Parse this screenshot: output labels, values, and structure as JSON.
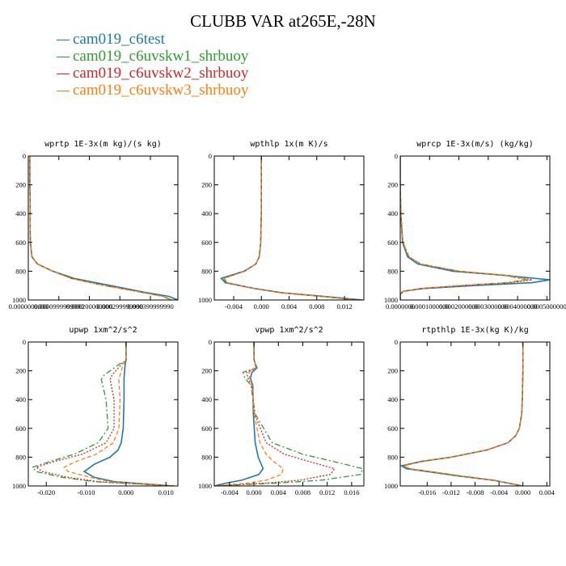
{
  "title": "CLUBB VAR at265E,-28N",
  "legend": [
    {
      "label": "cam019_c6test",
      "color": "#1f77b4",
      "style": "solid"
    },
    {
      "label": "cam019_c6uvskw1_shrbuoy",
      "color": "#2ca02c",
      "style": "dashdot"
    },
    {
      "label": "cam019_c6uvskw2_shrbuoy",
      "color": "#d62728",
      "style": "dotted"
    },
    {
      "label": "cam019_c6uvskw3_shrbuoy",
      "color": "#ff7f0e",
      "style": "dashed"
    }
  ],
  "chart_data": [
    {
      "type": "line",
      "title": "wprtp  1E-3x(m kg)/(s kg)",
      "xlim": [
        0.0,
        0.00049
      ],
      "ylim": [
        1000,
        0
      ],
      "xticks": [
        0.0,
        0.0001,
        0.0002,
        0.0003,
        0.0004
      ],
      "xtick_labels": [
        "0.0000000000",
        "0.0000999999990",
        "0.000200000000",
        "0.000299999990",
        "0.000399999990"
      ],
      "yticks": [
        0,
        200,
        400,
        600,
        800,
        1000
      ],
      "series": [
        {
          "y": [
            0,
            100,
            200,
            300,
            400,
            500,
            600,
            700,
            750,
            800,
            850,
            900,
            950,
            975,
            1000
          ],
          "x": [
            5e-06,
            5e-06,
            5e-06,
            6e-06,
            6e-06,
            6e-06,
            7e-06,
            1.2e-05,
            3e-05,
            8e-05,
            0.00015,
            0.00027,
            0.00039,
            0.00046,
            0.00049
          ]
        },
        {
          "y": [
            0,
            100,
            200,
            300,
            400,
            500,
            600,
            700,
            750,
            800,
            850,
            900,
            950,
            975,
            1000
          ],
          "x": [
            5e-06,
            5e-06,
            5e-06,
            6e-06,
            6e-06,
            6e-06,
            7e-06,
            1.2e-05,
            3e-05,
            8e-05,
            0.00014,
            0.00025,
            0.00038,
            0.00044,
            0.00047
          ]
        },
        {
          "y": [
            0,
            100,
            200,
            300,
            400,
            500,
            600,
            700,
            750,
            800,
            850,
            900,
            950,
            975,
            1000
          ],
          "x": [
            5e-06,
            5e-06,
            5e-06,
            6e-06,
            6e-06,
            6e-06,
            7e-06,
            1.2e-05,
            3e-05,
            8e-05,
            0.00014,
            0.00025,
            0.00038,
            0.00044,
            0.00047
          ]
        },
        {
          "y": [
            0,
            100,
            200,
            300,
            400,
            500,
            600,
            700,
            750,
            800,
            850,
            900,
            950,
            975,
            1000
          ],
          "x": [
            5e-06,
            5e-06,
            5e-06,
            6e-06,
            6e-06,
            6e-06,
            7e-06,
            1.2e-05,
            3e-05,
            8e-05,
            0.00014,
            0.00025,
            0.00038,
            0.00044,
            0.00047
          ]
        }
      ]
    },
    {
      "type": "line",
      "title": "wpthlp  1x(m K)/s",
      "xlim": [
        -0.0068,
        0.0148
      ],
      "ylim": [
        1000,
        0
      ],
      "xticks": [
        -0.004,
        0.0,
        0.004,
        0.008,
        0.012
      ],
      "xtick_labels": [
        "-0.004",
        "0.000",
        "0.004",
        "0.008",
        "0.012"
      ],
      "yticks": [
        0,
        200,
        400,
        600,
        800,
        1000
      ],
      "series": [
        {
          "y": [
            0,
            200,
            400,
            600,
            700,
            750,
            800,
            850,
            880,
            920,
            950,
            975,
            1000
          ],
          "x": [
            0.0,
            0.0,
            0.0,
            -0.0001,
            -0.0003,
            -0.0008,
            -0.0025,
            -0.0058,
            -0.0052,
            -0.001,
            0.003,
            0.009,
            0.0146
          ]
        },
        {
          "y": [
            0,
            200,
            400,
            600,
            700,
            750,
            800,
            850,
            880,
            920,
            950,
            975,
            1000
          ],
          "x": [
            0.0,
            0.0,
            0.0,
            -0.0001,
            -0.0003,
            -0.0008,
            -0.0024,
            -0.0055,
            -0.005,
            -0.001,
            0.0028,
            0.0085,
            0.0138
          ]
        },
        {
          "y": [
            0,
            200,
            400,
            600,
            700,
            750,
            800,
            850,
            880,
            920,
            950,
            975,
            1000
          ],
          "x": [
            0.0,
            0.0,
            0.0,
            -0.0001,
            -0.0003,
            -0.0008,
            -0.0024,
            -0.0054,
            -0.0049,
            -0.001,
            0.0028,
            0.0085,
            0.0138
          ]
        },
        {
          "y": [
            0,
            200,
            400,
            600,
            700,
            750,
            800,
            850,
            880,
            920,
            950,
            975,
            1000
          ],
          "x": [
            0.0,
            0.0,
            0.0,
            -0.0001,
            -0.0003,
            -0.0008,
            -0.0024,
            -0.0054,
            -0.0049,
            -0.001,
            0.0028,
            0.0085,
            0.0138
          ]
        }
      ]
    },
    {
      "type": "line",
      "title": "wprcp  1E-3x(m/s) (kg/kg)",
      "xlim": [
        0.0,
        0.00051
      ],
      "ylim": [
        1000,
        0
      ],
      "xticks": [
        0.0,
        0.0001,
        0.0002,
        0.0003,
        0.0004,
        0.0005
      ],
      "xtick_labels": [
        "0.0000000",
        "0.0001000000",
        "0.0002000000",
        "0.0003000000",
        "0.0004000000",
        "0.0005000000"
      ],
      "yticks": [
        0,
        200,
        400,
        600,
        800,
        1000
      ],
      "series": [
        {
          "y": [
            0,
            200,
            400,
            600,
            700,
            750,
            800,
            830,
            860,
            880,
            900,
            920,
            940,
            960,
            1000
          ],
          "x": [
            0.0,
            0.0,
            2e-06,
            8e-06,
            2.5e-05,
            6e-05,
            0.00018,
            0.00036,
            0.00051,
            0.00045,
            0.00025,
            8e-05,
            1e-05,
            0.0,
            0.0
          ]
        },
        {
          "y": [
            0,
            200,
            400,
            600,
            700,
            750,
            800,
            830,
            860,
            880,
            900,
            920,
            940,
            960,
            1000
          ],
          "x": [
            0.0,
            0.0,
            2e-06,
            9e-06,
            3e-05,
            7e-05,
            0.0002,
            0.00036,
            0.00043,
            0.00036,
            0.0002,
            7e-05,
            1e-05,
            0.0,
            0.0
          ]
        },
        {
          "y": [
            0,
            200,
            400,
            600,
            700,
            750,
            800,
            830,
            860,
            880,
            900,
            920,
            940,
            960,
            1000
          ],
          "x": [
            0.0,
            0.0,
            2e-06,
            9e-06,
            3e-05,
            7e-05,
            0.0002,
            0.00037,
            0.00045,
            0.00038,
            0.00021,
            7e-05,
            1e-05,
            0.0,
            0.0
          ]
        },
        {
          "y": [
            0,
            200,
            400,
            600,
            700,
            750,
            800,
            830,
            860,
            880,
            900,
            920,
            940,
            960,
            1000
          ],
          "x": [
            0.0,
            0.0,
            2e-06,
            9e-06,
            3e-05,
            7e-05,
            0.0002,
            0.00037,
            0.00044,
            0.00037,
            0.0002,
            7e-05,
            1e-05,
            0.0,
            0.0
          ]
        }
      ]
    },
    {
      "type": "line",
      "title": "upwp   1xm^2/s^2",
      "xlim": [
        -0.0245,
        0.013
      ],
      "ylim": [
        1000,
        0
      ],
      "xticks": [
        -0.02,
        -0.01,
        0.0,
        0.01
      ],
      "xtick_labels": [
        "-0.020",
        "-0.010",
        "0.000",
        "0.010"
      ],
      "yticks": [
        0,
        200,
        400,
        600,
        800,
        1000
      ],
      "series": [
        {
          "y": [
            0,
            130,
            150,
            250,
            400,
            600,
            700,
            750,
            800,
            850,
            900,
            940,
            970,
            1000
          ],
          "x": [
            0.0,
            0.0,
            -0.0002,
            -0.0005,
            -0.0005,
            -0.0007,
            -0.0012,
            -0.002,
            -0.004,
            -0.008,
            -0.0105,
            -0.008,
            -0.003,
            0.012
          ]
        },
        {
          "y": [
            0,
            130,
            150,
            230,
            260,
            400,
            600,
            700,
            780,
            830,
            870,
            900,
            940,
            970,
            1000
          ],
          "x": [
            0.0,
            0.0,
            -0.0015,
            -0.0055,
            -0.0062,
            -0.005,
            -0.0045,
            -0.007,
            -0.013,
            -0.019,
            -0.0235,
            -0.0225,
            -0.016,
            -0.008,
            0.012
          ]
        },
        {
          "y": [
            0,
            130,
            150,
            230,
            260,
            400,
            600,
            700,
            780,
            830,
            870,
            900,
            940,
            970,
            1000
          ],
          "x": [
            0.0,
            0.0,
            -0.001,
            -0.0035,
            -0.004,
            -0.003,
            -0.003,
            -0.005,
            -0.011,
            -0.018,
            -0.0225,
            -0.021,
            -0.0145,
            -0.007,
            0.012
          ]
        },
        {
          "y": [
            0,
            130,
            150,
            230,
            260,
            400,
            600,
            700,
            780,
            830,
            870,
            900,
            940,
            970,
            1000
          ],
          "x": [
            0.0,
            0.0,
            -0.0006,
            -0.0015,
            -0.0018,
            -0.0015,
            -0.0018,
            -0.0032,
            -0.0075,
            -0.0125,
            -0.0155,
            -0.0145,
            -0.009,
            -0.004,
            0.012
          ]
        }
      ]
    },
    {
      "type": "line",
      "title": "vpwp   1xm^2/s^2",
      "xlim": [
        -0.0065,
        0.018
      ],
      "ylim": [
        1000,
        0
      ],
      "xticks": [
        -0.004,
        0.0,
        0.004,
        0.008,
        0.012,
        0.016
      ],
      "xtick_labels": [
        "-0.004",
        "0.000",
        "0.004",
        "0.008",
        "0.012",
        "0.016"
      ],
      "yticks": [
        0,
        200,
        400,
        600,
        800,
        1000
      ],
      "series": [
        {
          "y": [
            0,
            120,
            150,
            180,
            210,
            250,
            300,
            500,
            700,
            800,
            880,
            920,
            960,
            980,
            1000
          ],
          "x": [
            0.0,
            0.0,
            0.0002,
            0.0005,
            -0.0003,
            -0.0006,
            -0.0002,
            -0.0001,
            0.0002,
            0.0007,
            0.0015,
            0.0008,
            -0.002,
            -0.0045,
            -0.0065
          ]
        },
        {
          "y": [
            0,
            120,
            150,
            180,
            210,
            250,
            300,
            500,
            700,
            780,
            830,
            880,
            920,
            960,
            980,
            1000
          ],
          "x": [
            0.0,
            0.0,
            0.0002,
            0.0004,
            -0.0018,
            -0.0015,
            -0.0005,
            0.0002,
            0.003,
            0.008,
            0.013,
            0.0178,
            0.0175,
            0.011,
            0.004,
            -0.0065
          ]
        },
        {
          "y": [
            0,
            120,
            150,
            180,
            210,
            250,
            300,
            500,
            700,
            780,
            830,
            880,
            920,
            960,
            980,
            1000
          ],
          "x": [
            0.0,
            0.0,
            0.0002,
            0.0003,
            -0.0012,
            -0.001,
            -0.0004,
            0.0001,
            0.002,
            0.005,
            0.009,
            0.0132,
            0.0125,
            0.0075,
            0.002,
            -0.0065
          ]
        },
        {
          "y": [
            0,
            120,
            150,
            180,
            210,
            250,
            300,
            500,
            700,
            780,
            830,
            880,
            920,
            960,
            980,
            1000
          ],
          "x": [
            0.0,
            0.0,
            0.0002,
            0.0004,
            -0.0008,
            -0.0007,
            -0.0003,
            0.0,
            0.001,
            0.002,
            0.0032,
            0.0048,
            0.0045,
            0.002,
            -0.001,
            -0.0065
          ]
        }
      ]
    },
    {
      "type": "line",
      "title": "rtpthlp  1E-3x(kg K)/kg",
      "xlim": [
        -0.0205,
        0.0045
      ],
      "ylim": [
        1000,
        0
      ],
      "xticks": [
        -0.016,
        -0.012,
        -0.008,
        -0.004,
        0.0,
        0.004
      ],
      "xtick_labels": [
        "-0.016",
        "-0.012",
        "-0.008",
        "-0.004",
        "0.000",
        "0.004"
      ],
      "yticks": [
        0,
        200,
        400,
        600,
        800,
        1000
      ],
      "series": [
        {
          "y": [
            0,
            200,
            400,
            500,
            600,
            650,
            700,
            750,
            800,
            830,
            860,
            880,
            900,
            930,
            960,
            1000
          ],
          "x": [
            0.0,
            0.0,
            -0.0001,
            -0.0002,
            -0.0006,
            -0.0012,
            -0.0025,
            -0.006,
            -0.012,
            -0.017,
            -0.0203,
            -0.0195,
            -0.016,
            -0.011,
            -0.005,
            0.0
          ]
        },
        {
          "y": [
            0,
            200,
            400,
            500,
            600,
            650,
            700,
            750,
            800,
            830,
            860,
            880,
            900,
            930,
            960,
            1000
          ],
          "x": [
            0.0,
            0.0,
            -0.0001,
            -0.0002,
            -0.0006,
            -0.0012,
            -0.0025,
            -0.006,
            -0.012,
            -0.0168,
            -0.02,
            -0.019,
            -0.0155,
            -0.0105,
            -0.0048,
            0.0
          ]
        },
        {
          "y": [
            0,
            200,
            400,
            500,
            600,
            650,
            700,
            750,
            800,
            830,
            860,
            880,
            900,
            930,
            960,
            1000
          ],
          "x": [
            0.0,
            0.0,
            -0.0001,
            -0.0002,
            -0.0006,
            -0.0012,
            -0.0025,
            -0.006,
            -0.012,
            -0.0168,
            -0.02,
            -0.019,
            -0.0155,
            -0.0105,
            -0.0048,
            0.0
          ]
        },
        {
          "y": [
            0,
            200,
            400,
            500,
            600,
            650,
            700,
            750,
            800,
            830,
            860,
            880,
            900,
            930,
            960,
            1000
          ],
          "x": [
            0.0,
            0.0,
            -0.0001,
            -0.0002,
            -0.0006,
            -0.0012,
            -0.0025,
            -0.006,
            -0.012,
            -0.0168,
            -0.02,
            -0.019,
            -0.0155,
            -0.0105,
            -0.0048,
            0.0
          ]
        }
      ]
    }
  ]
}
